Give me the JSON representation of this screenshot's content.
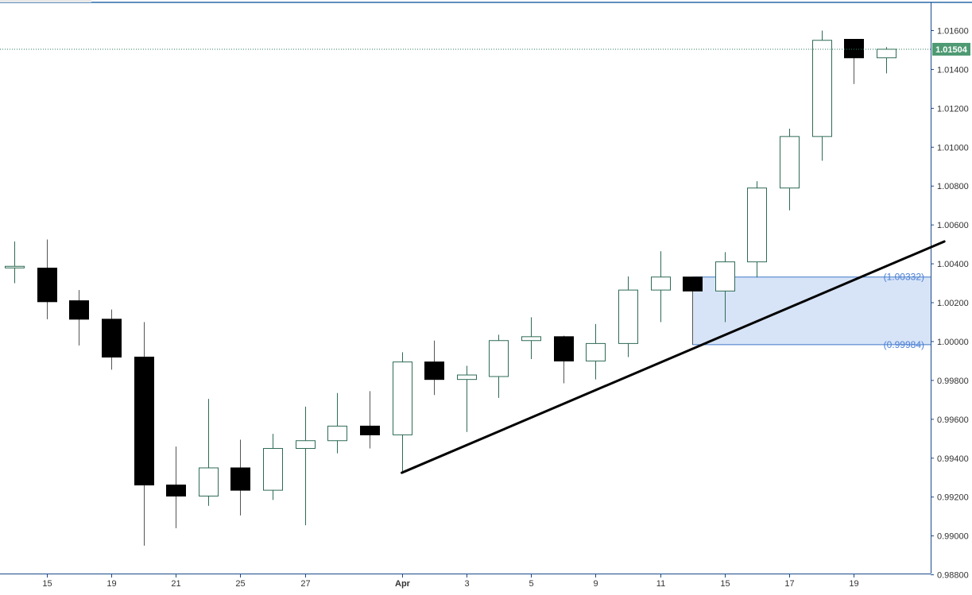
{
  "chart_data": {
    "type": "candlestick",
    "ylim": [
      0.988,
      1.0167
    ],
    "y_ticks": [
      "1.01600",
      "1.01400",
      "1.01200",
      "1.01000",
      "1.00800",
      "1.00600",
      "1.00400",
      "1.00200",
      "1.00000",
      "0.99800",
      "0.99600",
      "0.99400",
      "0.99200",
      "0.99000",
      "0.98800"
    ],
    "x_ticks": [
      {
        "label": "15",
        "index": 1,
        "bold": false
      },
      {
        "label": "19",
        "index": 3,
        "bold": false
      },
      {
        "label": "21",
        "index": 5,
        "bold": false
      },
      {
        "label": "25",
        "index": 7,
        "bold": false
      },
      {
        "label": "27",
        "index": 9,
        "bold": false
      },
      {
        "label": "Apr",
        "index": 12,
        "bold": true
      },
      {
        "label": "3",
        "index": 14,
        "bold": false
      },
      {
        "label": "5",
        "index": 16,
        "bold": false
      },
      {
        "label": "9",
        "index": 18,
        "bold": false
      },
      {
        "label": "11",
        "index": 20,
        "bold": false
      },
      {
        "label": "15",
        "index": 22,
        "bold": false
      },
      {
        "label": "17",
        "index": 24,
        "bold": false
      },
      {
        "label": "19",
        "index": 26,
        "bold": false
      }
    ],
    "candles": [
      {
        "o": 1.00383,
        "h": 1.00515,
        "l": 1.003,
        "c": 1.00383
      },
      {
        "o": 1.00378,
        "h": 1.00525,
        "l": 1.00115,
        "c": 1.00205
      },
      {
        "o": 1.0021,
        "h": 1.00265,
        "l": 0.9998,
        "c": 1.00115
      },
      {
        "o": 1.00115,
        "h": 1.00165,
        "l": 0.99855,
        "c": 0.9992
      },
      {
        "o": 0.9992,
        "h": 1.001,
        "l": 0.9895,
        "c": 0.99262
      },
      {
        "o": 0.99262,
        "h": 0.9946,
        "l": 0.9904,
        "c": 0.99205
      },
      {
        "o": 0.99205,
        "h": 0.99705,
        "l": 0.99155,
        "c": 0.9935
      },
      {
        "o": 0.9935,
        "h": 0.99495,
        "l": 0.99105,
        "c": 0.99235
      },
      {
        "o": 0.99235,
        "h": 0.99525,
        "l": 0.99185,
        "c": 0.9945
      },
      {
        "o": 0.9945,
        "h": 0.99665,
        "l": 0.99055,
        "c": 0.9949
      },
      {
        "o": 0.9949,
        "h": 0.99735,
        "l": 0.99425,
        "c": 0.99565
      },
      {
        "o": 0.99565,
        "h": 0.99745,
        "l": 0.9945,
        "c": 0.9952
      },
      {
        "o": 0.9952,
        "h": 0.99945,
        "l": 0.9933,
        "c": 0.99895
      },
      {
        "o": 0.99895,
        "h": 1.00005,
        "l": 0.99725,
        "c": 0.99805
      },
      {
        "o": 0.99805,
        "h": 0.99875,
        "l": 0.99535,
        "c": 0.99828
      },
      {
        "o": 0.9982,
        "h": 1.00035,
        "l": 0.9971,
        "c": 1.00005
      },
      {
        "o": 1.00005,
        "h": 1.00125,
        "l": 0.9991,
        "c": 1.00025
      },
      {
        "o": 1.00025,
        "h": 1.0003,
        "l": 0.99785,
        "c": 0.999
      },
      {
        "o": 0.999,
        "h": 1.0009,
        "l": 0.99805,
        "c": 0.9999
      },
      {
        "o": 0.9999,
        "h": 1.00335,
        "l": 0.9992,
        "c": 1.00265
      },
      {
        "o": 1.00265,
        "h": 1.00465,
        "l": 1.001,
        "c": 1.00332
      },
      {
        "o": 1.00332,
        "h": 1.00332,
        "l": 0.99984,
        "c": 1.0026
      },
      {
        "o": 1.0026,
        "h": 1.0046,
        "l": 1.001,
        "c": 1.0041
      },
      {
        "o": 1.0041,
        "h": 1.00825,
        "l": 1.0033,
        "c": 1.0079
      },
      {
        "o": 1.0079,
        "h": 1.01095,
        "l": 1.00675,
        "c": 1.01055
      },
      {
        "o": 1.01055,
        "h": 1.016,
        "l": 1.0093,
        "c": 1.0155
      },
      {
        "o": 1.01555,
        "h": 1.01555,
        "l": 1.01325,
        "c": 1.0146
      },
      {
        "o": 1.0146,
        "h": 1.01515,
        "l": 1.0138,
        "c": 1.01504
      }
    ],
    "last_price": 1.01504,
    "last_price_label": "1.01504",
    "zone": {
      "top": 1.00332,
      "bottom": 0.99984,
      "top_label": "(1.00332)",
      "bottom_label": "(0.99984)",
      "start_index": 21
    },
    "trendline": {
      "start_index": 12,
      "start_value": 0.99325,
      "end_index": 28.8,
      "end_value": 1.00515
    },
    "colors": {
      "up_body": "#ffffff",
      "up_border": "#2e6b55",
      "down_body": "#000000",
      "wick": "#555555",
      "zone_fill": "#d5e3f7",
      "zone_border": "#3f78c9",
      "zone_label": "#4a7fd6",
      "trendline": "#000000",
      "price_tag": "#4e9a73",
      "price_line": "#2e7d5b",
      "axis": "#1a4a8a"
    }
  }
}
